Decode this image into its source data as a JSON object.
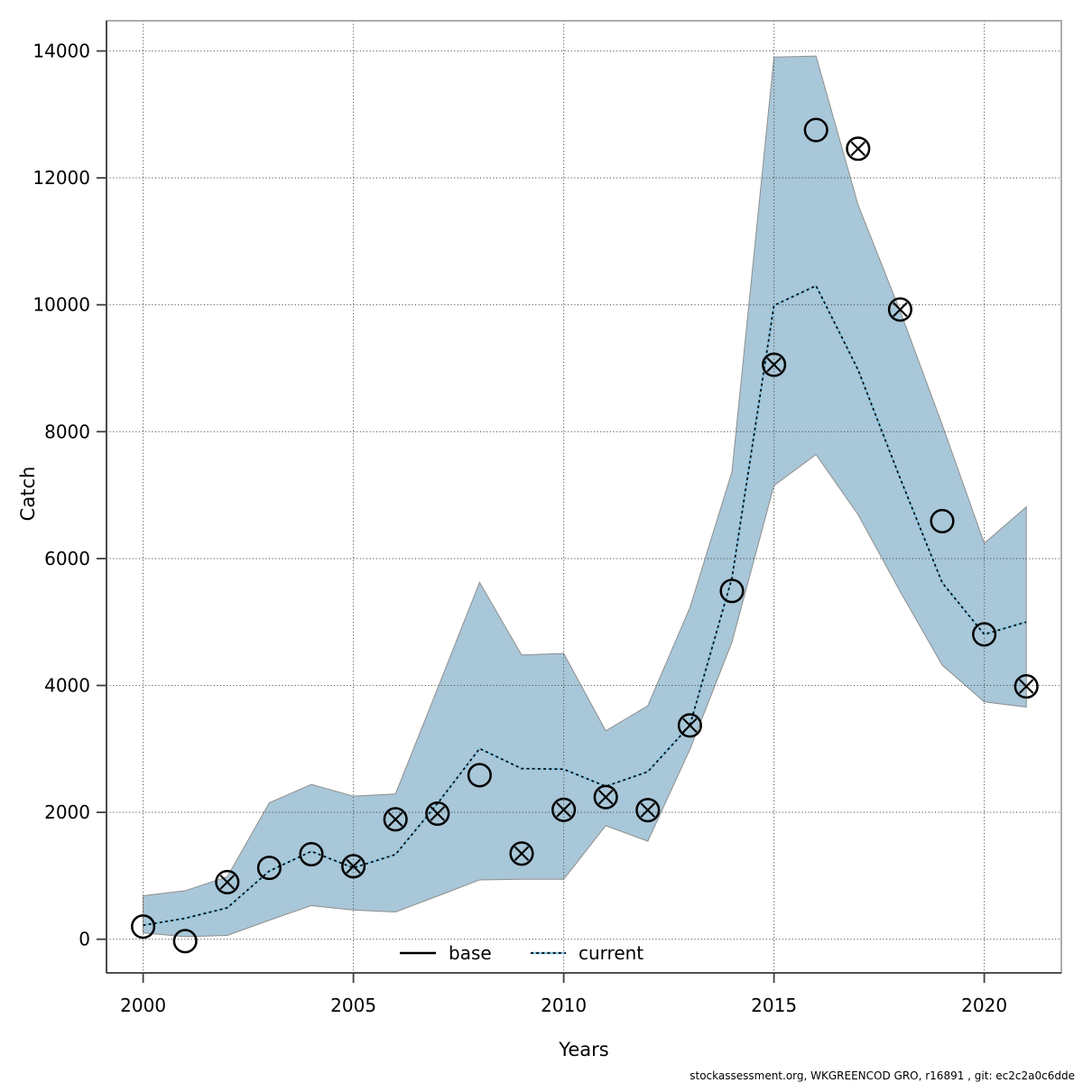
{
  "figure": {
    "xlabel": "Years",
    "ylabel": "Catch",
    "footer": "stockassessment.org, WKGREENCOD  GRO, r16891 , git: ec2c2a0c6dde"
  },
  "legend": {
    "items": [
      {
        "label": "base",
        "style": "solid-black-line"
      },
      {
        "label": "current",
        "style": "dotted-blue-line"
      }
    ]
  },
  "colors": {
    "band": "#a8c7d8",
    "band_edge": "#8f8f8f",
    "current_underlay": "#85c1dd",
    "current_dots": "#000000",
    "points": "#000000",
    "grid": "#454545",
    "frame": "#999999",
    "axis": "#3f3f3f",
    "text": "#000000"
  },
  "chart_data": {
    "type": "line",
    "title": "",
    "xlabel": "Years",
    "ylabel": "Catch",
    "x_ticks": [
      2000,
      2005,
      2010,
      2015,
      2020
    ],
    "y_ticks": [
      0,
      2000,
      4000,
      6000,
      8000,
      10000,
      12000,
      14000
    ],
    "xlim": [
      1999.13,
      2021.81
    ],
    "ylim": [
      -530,
      14480
    ],
    "grid": "dotted",
    "legend_position": "bottom-center-inside",
    "years": [
      2000,
      2001,
      2002,
      2003,
      2004,
      2005,
      2006,
      2007,
      2008,
      2009,
      2010,
      2011,
      2012,
      2013,
      2014,
      2015,
      2016,
      2017,
      2018,
      2019,
      2020,
      2021
    ],
    "series": [
      {
        "name": "base",
        "render": "points",
        "marker": [
          "circle",
          "circle",
          "circle-x",
          "circle",
          "circle",
          "circle-x",
          "circle-x",
          "circle-x",
          "circle",
          "circle-x",
          "circle-x",
          "circle-x",
          "circle-x",
          "circle-x",
          "circle",
          "circle-x",
          "circle",
          "circle-x",
          "circle-x",
          "circle",
          "circle",
          "circle-x"
        ],
        "values": [
          200,
          -30,
          900,
          1125,
          1340,
          1150,
          1890,
          1980,
          2585,
          1350,
          2040,
          2240,
          2035,
          3370,
          5490,
          9055,
          12755,
          12460,
          9925,
          6590,
          4805,
          3985
        ]
      },
      {
        "name": "current",
        "render": "dotted-line",
        "values": [
          220,
          330,
          495,
          1075,
          1385,
          1125,
          1335,
          2140,
          3005,
          2690,
          2680,
          2410,
          2640,
          3370,
          5690,
          9990,
          10300,
          8975,
          7265,
          5620,
          4805,
          5000
        ]
      },
      {
        "name": "confidence-band",
        "render": "area",
        "lower": [
          100,
          40,
          60,
          300,
          530,
          460,
          430,
          680,
          935,
          945,
          945,
          1790,
          1545,
          2990,
          4680,
          7150,
          7640,
          6690,
          5480,
          4320,
          3740,
          3660
        ],
        "upper": [
          685,
          765,
          985,
          2150,
          2440,
          2255,
          2290,
          3950,
          5625,
          4480,
          4505,
          3285,
          3680,
          5225,
          7365,
          13905,
          13920,
          11575,
          9900,
          8110,
          6240,
          6815
        ]
      }
    ]
  }
}
